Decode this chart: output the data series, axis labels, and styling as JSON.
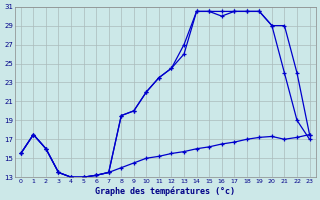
{
  "xlabel": "Graphe des températures (°c)",
  "background_color": "#cce8e8",
  "grid_color": "#aabbbb",
  "line_color": "#0000cc",
  "xlim_min": -0.5,
  "xlim_max": 23.5,
  "ylim_min": 13,
  "ylim_max": 31,
  "yticks": [
    13,
    15,
    17,
    19,
    21,
    23,
    25,
    27,
    29,
    31
  ],
  "xticks": [
    0,
    1,
    2,
    3,
    4,
    5,
    6,
    7,
    8,
    9,
    10,
    11,
    12,
    13,
    14,
    15,
    16,
    17,
    18,
    19,
    20,
    21,
    22,
    23
  ],
  "curve_min_x": [
    0,
    1,
    2,
    3,
    4,
    5,
    6,
    7,
    8,
    9,
    10,
    11,
    12,
    13,
    14,
    15,
    16,
    17,
    18,
    19,
    20,
    21,
    22,
    23
  ],
  "curve_min_y": [
    15.5,
    17.5,
    16.0,
    13.5,
    13.0,
    13.0,
    13.2,
    13.5,
    14.0,
    14.5,
    15.0,
    15.2,
    15.5,
    15.7,
    16.0,
    16.2,
    16.5,
    16.7,
    17.0,
    17.2,
    17.3,
    17.0,
    17.2,
    17.5
  ],
  "curve_cur_x": [
    0,
    1,
    2,
    3,
    4,
    5,
    6,
    7,
    8,
    9,
    10,
    11,
    12,
    13,
    14,
    15,
    16,
    17,
    18,
    19,
    20,
    21,
    22,
    23
  ],
  "curve_cur_y": [
    15.5,
    17.5,
    16.0,
    13.5,
    13.0,
    13.0,
    13.2,
    13.5,
    19.5,
    20.0,
    22.0,
    23.5,
    24.5,
    26.0,
    30.5,
    30.5,
    30.0,
    30.5,
    30.5,
    30.5,
    29.0,
    24.0,
    19.0,
    17.0
  ],
  "curve_max_x": [
    0,
    1,
    2,
    3,
    4,
    5,
    6,
    7,
    8,
    9,
    10,
    11,
    12,
    13,
    14,
    15,
    16,
    17,
    18,
    19,
    20,
    21,
    22,
    23
  ],
  "curve_max_y": [
    15.5,
    17.5,
    16.0,
    13.5,
    13.0,
    13.0,
    13.2,
    13.5,
    19.5,
    20.0,
    22.0,
    23.5,
    24.5,
    27.0,
    30.5,
    30.5,
    30.5,
    30.5,
    30.5,
    30.5,
    29.0,
    29.0,
    24.0,
    17.5
  ]
}
